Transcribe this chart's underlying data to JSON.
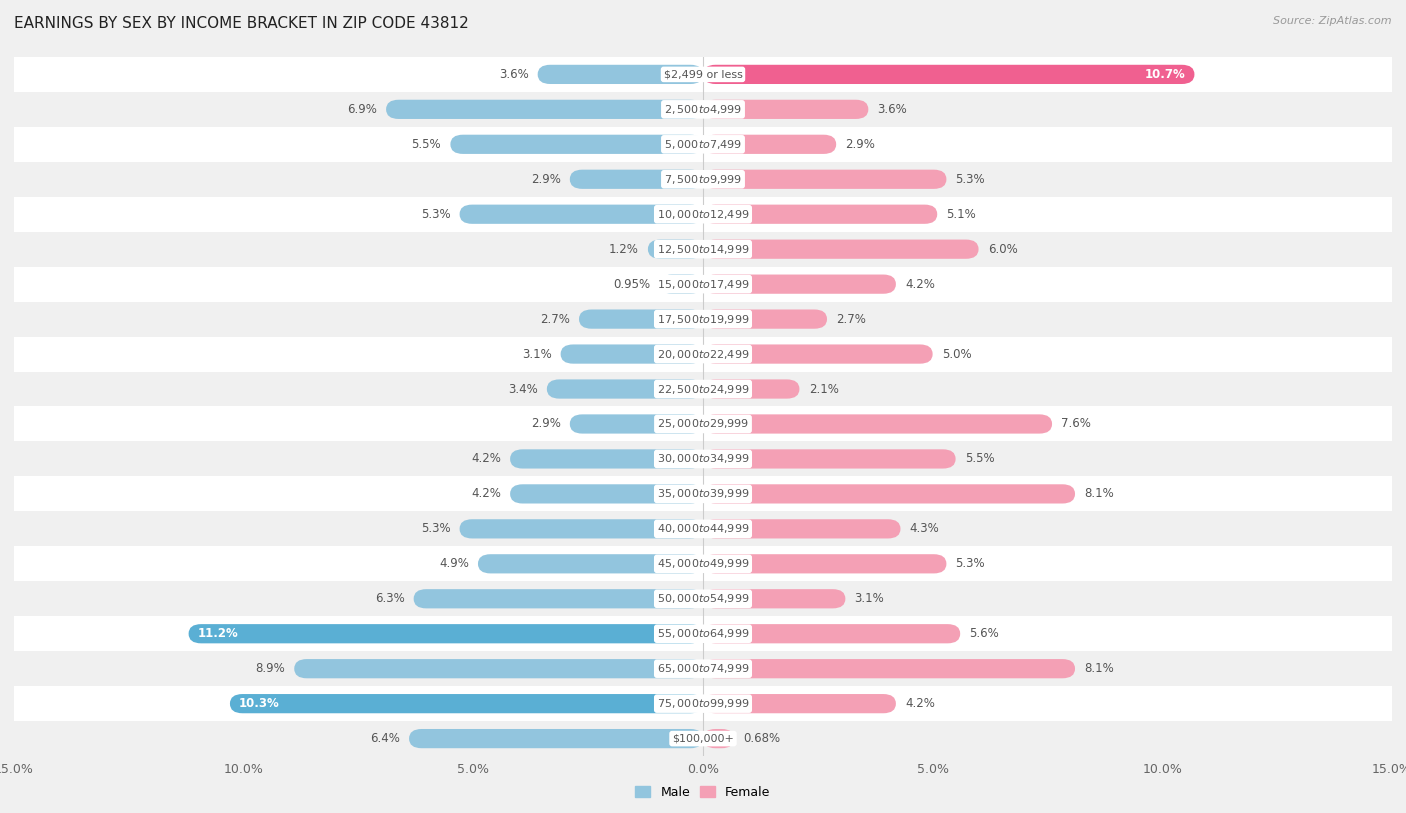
{
  "title": "EARNINGS BY SEX BY INCOME BRACKET IN ZIP CODE 43812",
  "source": "Source: ZipAtlas.com",
  "categories": [
    "$2,499 or less",
    "$2,500 to $4,999",
    "$5,000 to $7,499",
    "$7,500 to $9,999",
    "$10,000 to $12,499",
    "$12,500 to $14,999",
    "$15,000 to $17,499",
    "$17,500 to $19,999",
    "$20,000 to $22,499",
    "$22,500 to $24,999",
    "$25,000 to $29,999",
    "$30,000 to $34,999",
    "$35,000 to $39,999",
    "$40,000 to $44,999",
    "$45,000 to $49,999",
    "$50,000 to $54,999",
    "$55,000 to $64,999",
    "$65,000 to $74,999",
    "$75,000 to $99,999",
    "$100,000+"
  ],
  "male_values": [
    3.6,
    6.9,
    5.5,
    2.9,
    5.3,
    1.2,
    0.95,
    2.7,
    3.1,
    3.4,
    2.9,
    4.2,
    4.2,
    5.3,
    4.9,
    6.3,
    11.2,
    8.9,
    10.3,
    6.4
  ],
  "female_values": [
    10.7,
    3.6,
    2.9,
    5.3,
    5.1,
    6.0,
    4.2,
    2.7,
    5.0,
    2.1,
    7.6,
    5.5,
    8.1,
    4.3,
    5.3,
    3.1,
    5.6,
    8.1,
    4.2,
    0.68
  ],
  "male_color": "#92c5de",
  "female_color": "#f4a0b5",
  "male_highlight_color": "#5aafd4",
  "female_highlight_color": "#f06090",
  "male_highlight_indices": [
    16,
    18
  ],
  "female_highlight_indices": [
    0
  ],
  "xlim": 15.0,
  "bg_color": "#f0f0f0",
  "row_alt_color": "#ffffff",
  "bar_height": 0.55,
  "title_fontsize": 11,
  "label_fontsize": 8.5,
  "category_fontsize": 8.0,
  "axis_fontsize": 9,
  "legend_fontsize": 9
}
